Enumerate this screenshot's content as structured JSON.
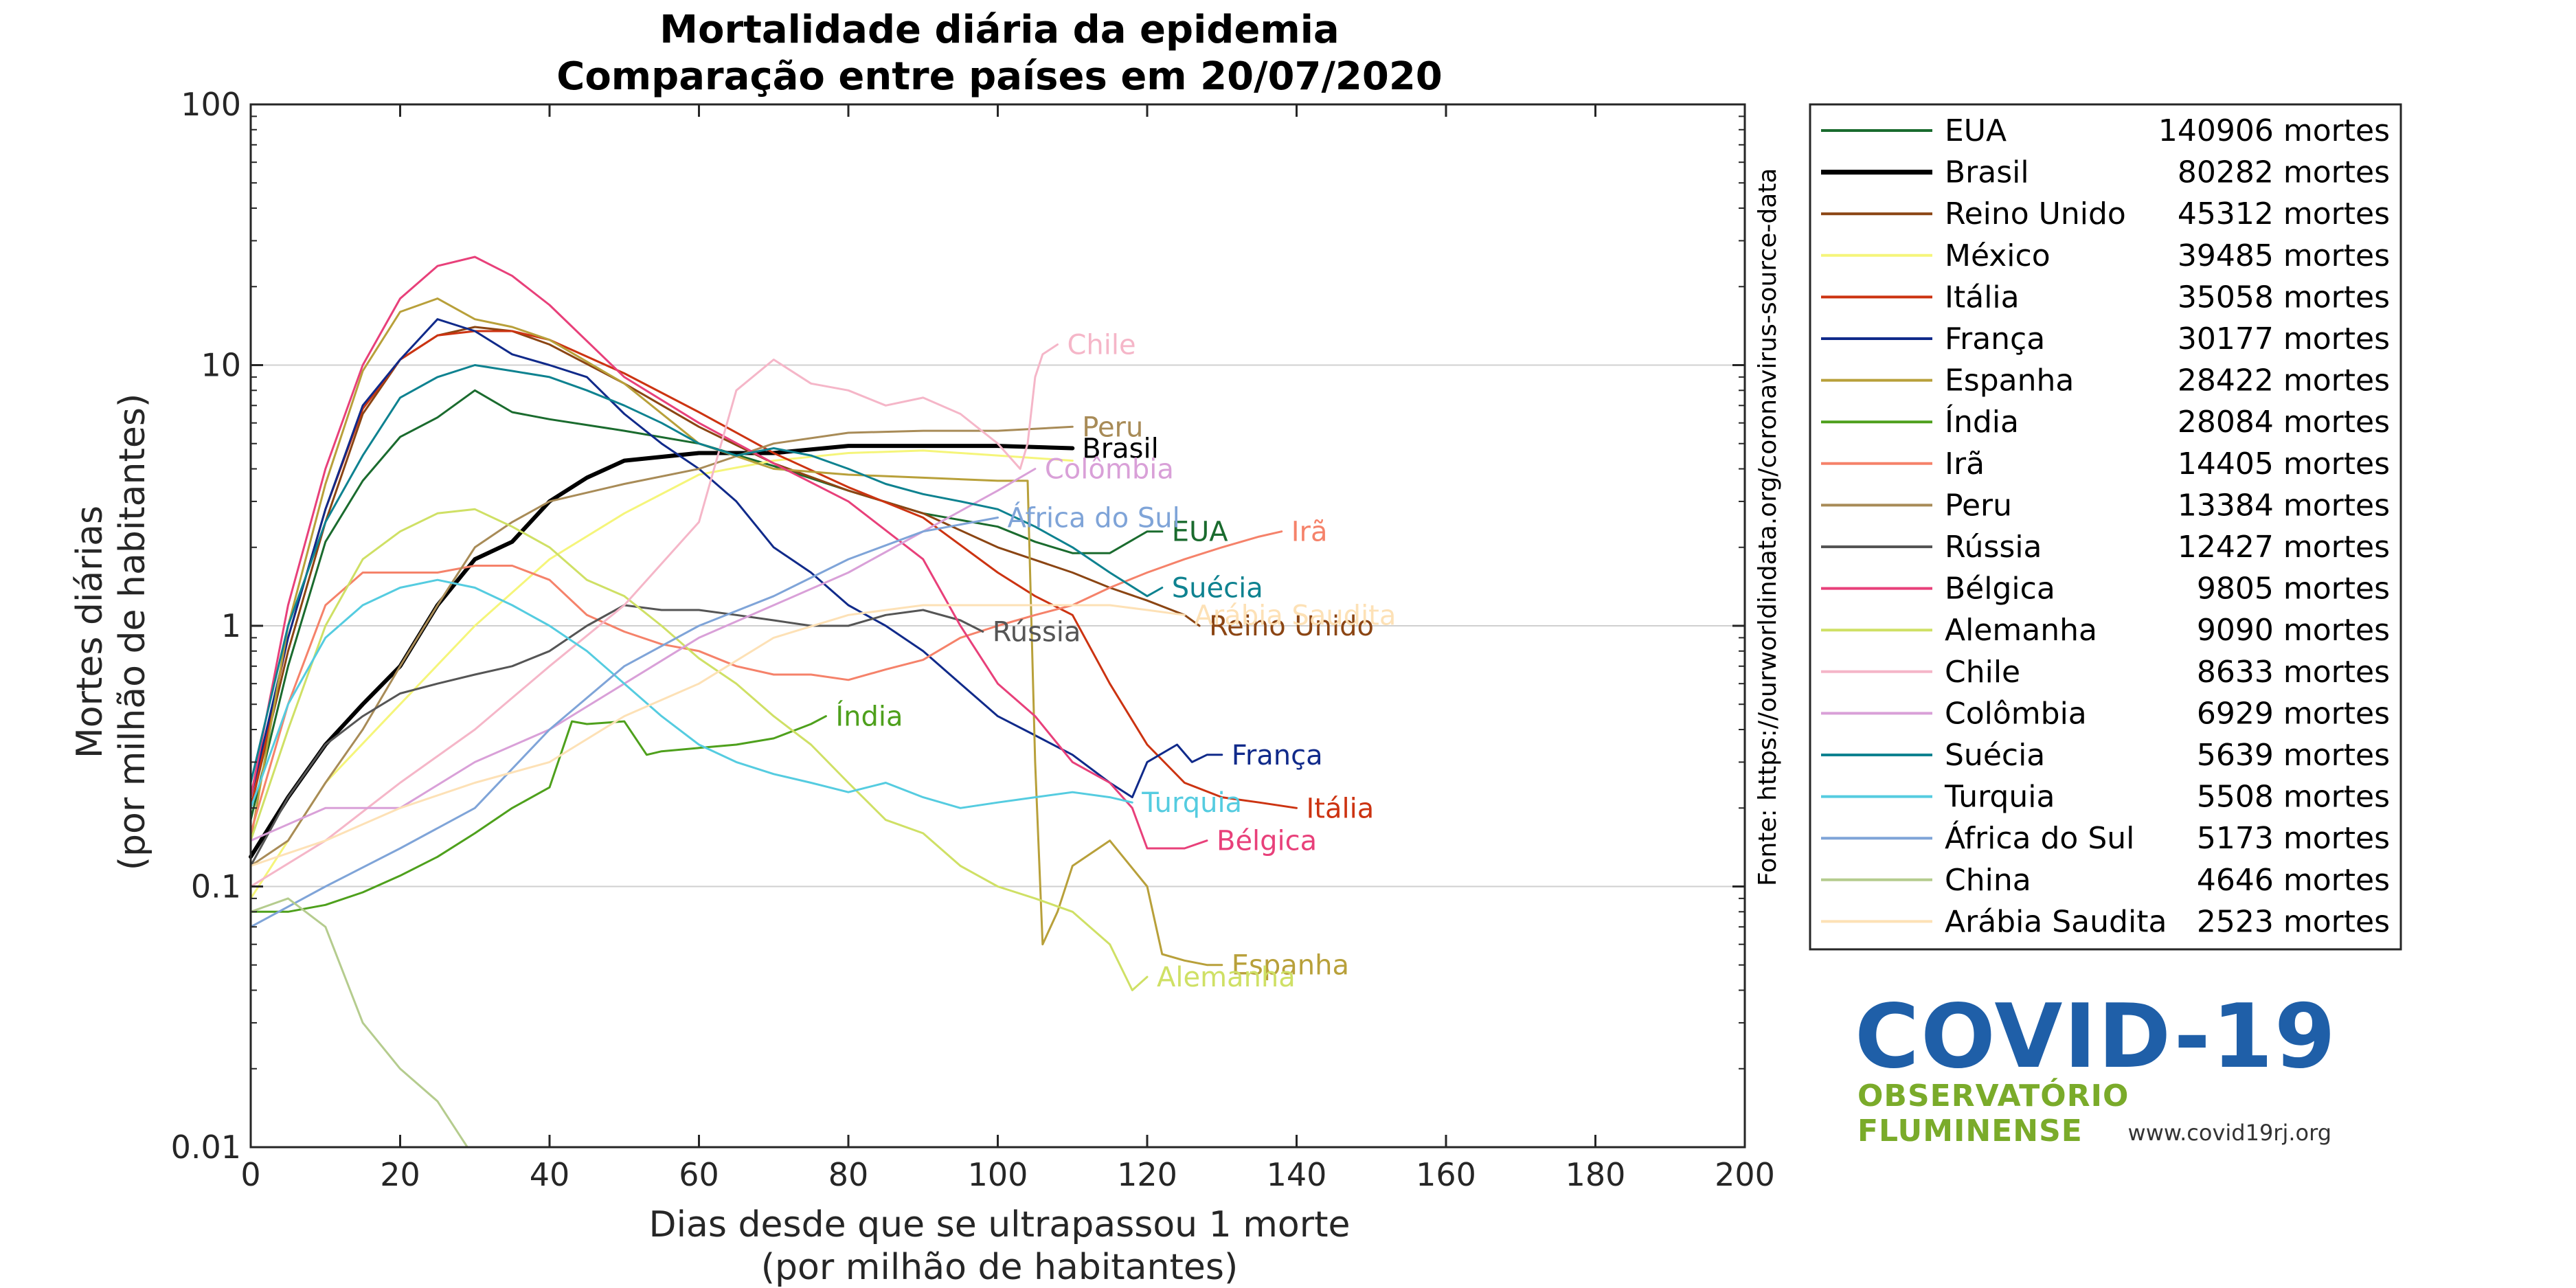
{
  "chart_data": {
    "type": "line",
    "title": "Mortalidade diária da epidemia",
    "subtitle": "Comparação entre países em 20/07/2020",
    "xlabel": "Dias desde que se ultrapassou 1 morte",
    "xlabel2": "(por milhão de habitantes)",
    "ylabel": "Mortes diárias",
    "ylabel2": "(por milhão de habitantes)",
    "source": "Fonte: https://ourworldindata.org/coronavirus-source-data",
    "xlim": [
      0,
      200
    ],
    "ylim": [
      0.01,
      100
    ],
    "yscale": "log",
    "xticks": [
      "0",
      "20",
      "40",
      "60",
      "80",
      "100",
      "120",
      "140",
      "160",
      "180",
      "200"
    ],
    "yticks": [
      "0.01",
      "0.1",
      "1",
      "10",
      "100"
    ],
    "grid": "y-major",
    "legend_position": "outside-right",
    "series": [
      {
        "name": "EUA",
        "legend": "140906 mortes",
        "label": "EUA",
        "color": "#1a6b2e",
        "width": 3,
        "x": [
          0,
          5,
          10,
          15,
          20,
          25,
          30,
          35,
          40,
          50,
          60,
          70,
          80,
          90,
          100,
          105,
          110,
          115,
          120,
          122
        ],
        "y": [
          0.18,
          0.7,
          2.1,
          3.6,
          5.3,
          6.3,
          8.0,
          6.6,
          6.2,
          5.6,
          5.0,
          4.1,
          3.3,
          2.7,
          2.4,
          2.1,
          1.9,
          1.9,
          2.3,
          2.3
        ]
      },
      {
        "name": "Brasil",
        "legend": "80282 mortes",
        "label": "Brasil",
        "color": "#000000",
        "width": 6,
        "x": [
          0,
          5,
          10,
          15,
          20,
          25,
          30,
          35,
          40,
          45,
          50,
          60,
          70,
          80,
          90,
          100,
          110
        ],
        "y": [
          0.13,
          0.22,
          0.35,
          0.5,
          0.7,
          1.2,
          1.8,
          2.1,
          3.0,
          3.7,
          4.3,
          4.6,
          4.6,
          4.9,
          4.9,
          4.9,
          4.8
        ]
      },
      {
        "name": "Reino Unido",
        "legend": "45312 mortes",
        "label": "Reino Unido",
        "color": "#8b4513",
        "width": 3,
        "x": [
          0,
          5,
          10,
          15,
          20,
          25,
          30,
          35,
          40,
          50,
          60,
          70,
          80,
          90,
          100,
          110,
          115,
          120,
          125,
          127
        ],
        "y": [
          0.2,
          0.8,
          2.5,
          6.5,
          10.5,
          13.0,
          14.0,
          13.5,
          12.0,
          8.5,
          5.8,
          4.2,
          3.3,
          2.7,
          2.0,
          1.6,
          1.4,
          1.25,
          1.1,
          1.0
        ]
      },
      {
        "name": "México",
        "legend": "39485 mortes",
        "label": "",
        "color": "#f5f57a",
        "width": 3,
        "x": [
          0,
          10,
          20,
          30,
          40,
          50,
          60,
          70,
          80,
          90,
          100,
          110
        ],
        "y": [
          0.09,
          0.25,
          0.5,
          1.0,
          1.8,
          2.7,
          3.8,
          4.3,
          4.6,
          4.7,
          4.5,
          4.3
        ]
      },
      {
        "name": "Itália",
        "legend": "35058 mortes",
        "label": "Itália",
        "color": "#cc3311",
        "width": 3,
        "x": [
          0,
          5,
          10,
          15,
          20,
          25,
          30,
          35,
          40,
          50,
          60,
          70,
          80,
          90,
          100,
          105,
          110,
          115,
          120,
          125,
          130,
          135,
          140
        ],
        "y": [
          0.2,
          0.9,
          2.8,
          6.8,
          10.5,
          13.0,
          13.5,
          13.5,
          12.5,
          9.3,
          6.6,
          4.6,
          3.4,
          2.6,
          1.6,
          1.3,
          1.1,
          0.6,
          0.35,
          0.25,
          0.22,
          0.21,
          0.2
        ]
      },
      {
        "name": "França",
        "legend": "30177 mortes",
        "label": "França",
        "color": "#102a8a",
        "width": 3,
        "x": [
          0,
          5,
          10,
          15,
          20,
          25,
          30,
          35,
          40,
          45,
          50,
          55,
          60,
          65,
          70,
          75,
          80,
          85,
          90,
          95,
          100,
          105,
          110,
          115,
          118,
          120,
          124,
          126,
          128,
          130
        ],
        "y": [
          0.22,
          0.9,
          2.8,
          7.0,
          10.5,
          15.0,
          13.5,
          11.0,
          10.0,
          9.0,
          6.5,
          5.0,
          4.0,
          3.0,
          2.0,
          1.6,
          1.2,
          1.0,
          0.8,
          0.6,
          0.45,
          0.38,
          0.32,
          0.25,
          0.22,
          0.3,
          0.35,
          0.3,
          0.32,
          0.32
        ]
      },
      {
        "name": "Espanha",
        "legend": "28422 mortes",
        "label": "Espanha",
        "color": "#b8a03a",
        "width": 3,
        "x": [
          0,
          5,
          10,
          15,
          20,
          25,
          30,
          35,
          40,
          50,
          60,
          70,
          80,
          90,
          100,
          104,
          105,
          106,
          108,
          110,
          115,
          120,
          122,
          125,
          128,
          130
        ],
        "y": [
          0.15,
          1.0,
          3.5,
          9.5,
          16.0,
          18.0,
          15.0,
          14.0,
          12.5,
          8.5,
          5.0,
          4.0,
          3.8,
          3.7,
          3.6,
          3.6,
          0.3,
          0.06,
          0.08,
          0.12,
          0.15,
          0.1,
          0.055,
          0.052,
          0.05,
          0.05
        ]
      },
      {
        "name": "Índia",
        "legend": "28084 mortes",
        "label": "Índia",
        "color": "#4ea01c",
        "width": 3,
        "x": [
          0,
          5,
          10,
          15,
          20,
          25,
          30,
          35,
          40,
          43,
          45,
          50,
          53,
          55,
          60,
          65,
          70,
          75,
          77
        ],
        "y": [
          0.08,
          0.08,
          0.085,
          0.095,
          0.11,
          0.13,
          0.16,
          0.2,
          0.24,
          0.43,
          0.42,
          0.43,
          0.32,
          0.33,
          0.34,
          0.35,
          0.37,
          0.42,
          0.45
        ]
      },
      {
        "name": "Irã",
        "legend": "14405 mortes",
        "label": "Irã",
        "color": "#f5826a",
        "width": 3,
        "x": [
          0,
          5,
          10,
          15,
          20,
          25,
          30,
          35,
          40,
          45,
          50,
          55,
          60,
          65,
          70,
          75,
          80,
          85,
          90,
          95,
          100,
          105,
          110,
          115,
          120,
          125,
          130,
          135,
          138
        ],
        "y": [
          0.16,
          0.5,
          1.2,
          1.6,
          1.6,
          1.6,
          1.7,
          1.7,
          1.5,
          1.1,
          0.95,
          0.85,
          0.8,
          0.7,
          0.65,
          0.65,
          0.62,
          0.68,
          0.74,
          0.9,
          1.0,
          1.1,
          1.2,
          1.4,
          1.6,
          1.8,
          2.0,
          2.2,
          2.3
        ]
      },
      {
        "name": "Peru",
        "legend": "13384 mortes",
        "label": "Peru",
        "color": "#a88b57",
        "width": 3,
        "x": [
          0,
          5,
          10,
          15,
          20,
          25,
          30,
          35,
          40,
          50,
          60,
          70,
          80,
          90,
          100,
          110
        ],
        "y": [
          0.12,
          0.15,
          0.25,
          0.4,
          0.7,
          1.2,
          2.0,
          2.5,
          3.0,
          3.5,
          4.0,
          5.0,
          5.5,
          5.6,
          5.6,
          5.8
        ]
      },
      {
        "name": "Rússia",
        "legend": "12427 mortes",
        "label": "Rússia",
        "color": "#555555",
        "width": 3,
        "x": [
          0,
          5,
          10,
          15,
          20,
          25,
          30,
          35,
          40,
          45,
          50,
          55,
          60,
          65,
          70,
          75,
          80,
          85,
          90,
          95,
          98
        ],
        "y": [
          0.12,
          0.22,
          0.35,
          0.45,
          0.55,
          0.6,
          0.65,
          0.7,
          0.8,
          1.0,
          1.2,
          1.15,
          1.15,
          1.1,
          1.05,
          1.0,
          1.0,
          1.1,
          1.15,
          1.05,
          0.95
        ]
      },
      {
        "name": "Bélgica",
        "legend": "9805 mortes",
        "label": "Bélgica",
        "color": "#e8407a",
        "width": 3,
        "x": [
          0,
          5,
          10,
          15,
          20,
          25,
          30,
          35,
          40,
          50,
          60,
          70,
          80,
          90,
          95,
          100,
          105,
          110,
          115,
          118,
          120,
          125,
          128
        ],
        "y": [
          0.22,
          1.2,
          4.0,
          10.0,
          18.0,
          24.0,
          26.0,
          22.0,
          17.0,
          9.0,
          6.0,
          4.2,
          3.0,
          1.8,
          1.0,
          0.6,
          0.45,
          0.3,
          0.25,
          0.2,
          0.14,
          0.14,
          0.15
        ]
      },
      {
        "name": "Alemanha",
        "legend": "9090 mortes",
        "label": "Alemanha",
        "color": "#cfe065",
        "width": 3,
        "x": [
          0,
          5,
          10,
          15,
          20,
          25,
          30,
          35,
          40,
          45,
          50,
          55,
          60,
          65,
          70,
          75,
          80,
          85,
          90,
          95,
          100,
          105,
          110,
          115,
          118,
          120
        ],
        "y": [
          0.15,
          0.4,
          1.0,
          1.8,
          2.3,
          2.7,
          2.8,
          2.4,
          2.0,
          1.5,
          1.3,
          1.0,
          0.75,
          0.6,
          0.45,
          0.35,
          0.25,
          0.18,
          0.16,
          0.12,
          0.1,
          0.09,
          0.08,
          0.06,
          0.04,
          0.045
        ]
      },
      {
        "name": "Chile",
        "legend": "8633 mortes",
        "label": "Chile",
        "color": "#f5b6c8",
        "width": 3,
        "x": [
          0,
          10,
          20,
          30,
          40,
          50,
          60,
          65,
          70,
          75,
          80,
          85,
          90,
          95,
          100,
          103,
          104,
          105,
          106,
          108
        ],
        "y": [
          0.1,
          0.15,
          0.25,
          0.4,
          0.7,
          1.2,
          2.5,
          8.0,
          10.5,
          8.5,
          8.0,
          7.0,
          7.5,
          6.5,
          5.0,
          4.0,
          5.0,
          9.0,
          11.0,
          12.0
        ]
      },
      {
        "name": "Colômbia",
        "legend": "6929 mortes",
        "label": "Colômbia",
        "color": "#d9a0d8",
        "width": 3,
        "x": [
          0,
          10,
          20,
          30,
          40,
          50,
          60,
          70,
          80,
          90,
          100,
          105
        ],
        "y": [
          0.15,
          0.2,
          0.2,
          0.3,
          0.4,
          0.6,
          0.9,
          1.2,
          1.6,
          2.3,
          3.3,
          4.0
        ]
      },
      {
        "name": "Suécia",
        "legend": "5639 mortes",
        "label": "Suécia",
        "color": "#0e8290",
        "width": 3,
        "x": [
          0,
          5,
          10,
          15,
          20,
          25,
          30,
          35,
          40,
          45,
          50,
          55,
          60,
          65,
          70,
          75,
          80,
          85,
          90,
          95,
          100,
          105,
          110,
          115,
          120,
          122
        ],
        "y": [
          0.25,
          1.0,
          2.5,
          4.5,
          7.5,
          9.0,
          10.0,
          9.5,
          9.0,
          8.0,
          7.0,
          6.0,
          5.0,
          4.5,
          4.8,
          4.5,
          4.0,
          3.5,
          3.2,
          3.0,
          2.8,
          2.4,
          2.0,
          1.6,
          1.3,
          1.4
        ]
      },
      {
        "name": "Turquia",
        "legend": "5508 mortes",
        "label": "Turquia",
        "color": "#55cce0",
        "width": 3,
        "x": [
          0,
          5,
          10,
          15,
          20,
          25,
          30,
          35,
          40,
          45,
          50,
          55,
          60,
          65,
          70,
          75,
          80,
          85,
          90,
          95,
          100,
          105,
          110,
          115,
          118
        ],
        "y": [
          0.2,
          0.5,
          0.9,
          1.2,
          1.4,
          1.5,
          1.4,
          1.2,
          1.0,
          0.8,
          0.6,
          0.45,
          0.35,
          0.3,
          0.27,
          0.25,
          0.23,
          0.25,
          0.22,
          0.2,
          0.21,
          0.22,
          0.23,
          0.22,
          0.21
        ]
      },
      {
        "name": "África do Sul",
        "legend": "5173 mortes",
        "label": "África do Sul",
        "color": "#7fa4d8",
        "width": 3,
        "x": [
          0,
          10,
          20,
          30,
          40,
          50,
          60,
          70,
          80,
          90,
          100
        ],
        "y": [
          0.07,
          0.1,
          0.14,
          0.2,
          0.4,
          0.7,
          1.0,
          1.3,
          1.8,
          2.3,
          2.6
        ]
      },
      {
        "name": "China",
        "legend": "4646 mortes",
        "label": "",
        "color": "#b5cc8e",
        "width": 3,
        "x": [
          0,
          5,
          10,
          15,
          20,
          25,
          29
        ],
        "y": [
          0.08,
          0.09,
          0.07,
          0.03,
          0.02,
          0.015,
          0.01
        ]
      },
      {
        "name": "Arábia Saudita",
        "legend": "2523 mortes",
        "label": "Arábia Saudita",
        "color": "#fde1b6",
        "width": 3,
        "x": [
          0,
          10,
          20,
          30,
          40,
          50,
          60,
          70,
          80,
          90,
          100,
          110,
          115,
          120,
          125
        ],
        "y": [
          0.12,
          0.15,
          0.2,
          0.25,
          0.3,
          0.45,
          0.6,
          0.9,
          1.1,
          1.2,
          1.2,
          1.2,
          1.2,
          1.15,
          1.1
        ]
      }
    ]
  },
  "logo": {
    "title": "COVID-19",
    "subtitle": "OBSERVATÓRIO FLUMINENSE",
    "url": "www.covid19rj.org"
  }
}
